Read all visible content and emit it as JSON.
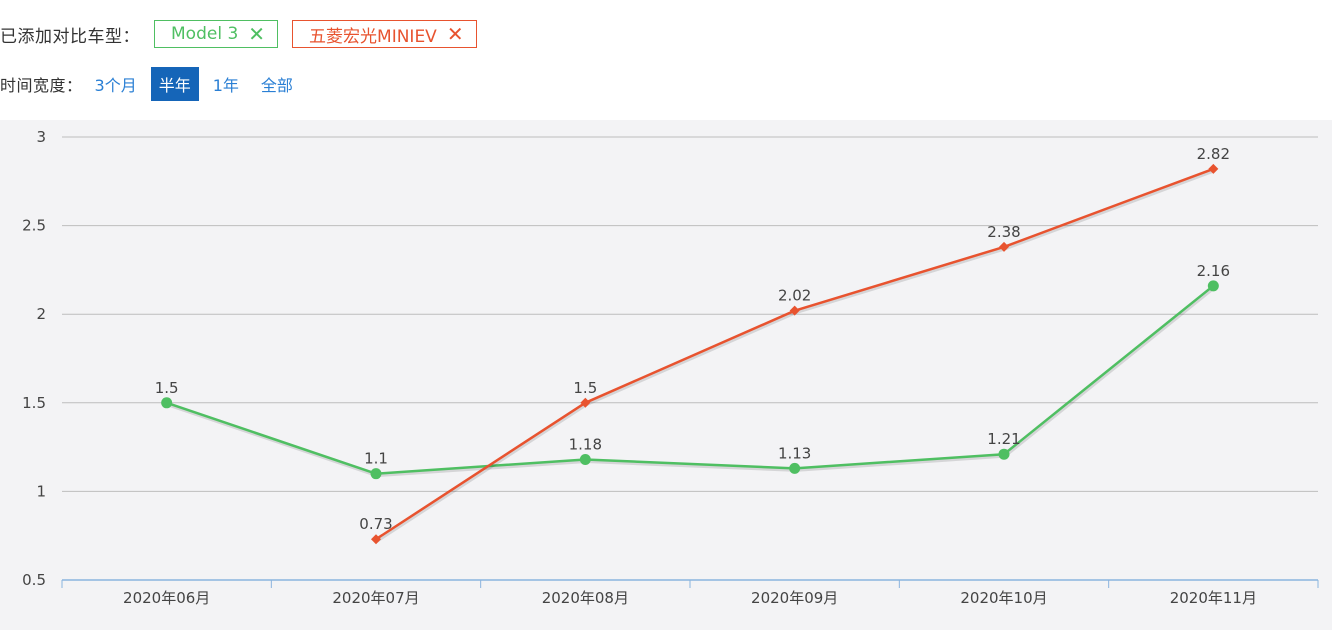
{
  "compare": {
    "label": "已添加对比车型：",
    "tags": [
      {
        "name": "Model 3",
        "close": "✕"
      },
      {
        "name": "五菱宏光MINIEV",
        "close": "✕"
      }
    ]
  },
  "time_range": {
    "label": "时间宽度：",
    "options": [
      "3个月",
      "半年",
      "1年",
      "全部"
    ],
    "selected": "半年"
  },
  "colors": {
    "model3": "#4fbf62",
    "miniev": "#e8532f",
    "axis": "#8ab4de",
    "grid": "#bdbdbd",
    "selected_bg": "#1565b8"
  },
  "chart_data": {
    "type": "line",
    "categories": [
      "2020年06月",
      "2020年07月",
      "2020年08月",
      "2020年09月",
      "2020年10月",
      "2020年11月"
    ],
    "series": [
      {
        "name": "Model 3",
        "values": [
          1.5,
          1.1,
          1.18,
          1.13,
          1.21,
          2.16
        ],
        "labels": [
          "1.5",
          "1.1",
          "1.18",
          "1.13",
          "1.21",
          "2.16"
        ]
      },
      {
        "name": "五菱宏光MINIEV",
        "values": [
          null,
          0.73,
          1.5,
          2.02,
          2.38,
          2.82
        ],
        "labels": [
          "",
          "0.73",
          "1.5",
          "2.02",
          "2.38",
          "2.82"
        ]
      }
    ],
    "yticks": [
      "0.5",
      "1",
      "1.5",
      "2",
      "2.5",
      "3"
    ],
    "ylim": [
      0.5,
      3
    ],
    "grid": true,
    "title": "",
    "xlabel": "",
    "ylabel": ""
  }
}
